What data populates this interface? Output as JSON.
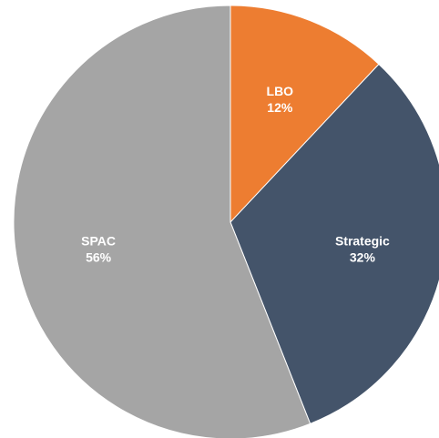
{
  "chart_data": {
    "type": "pie",
    "title": "",
    "slices": [
      {
        "name": "LBO",
        "value": 12,
        "label": "12%",
        "color": "#ED7D31"
      },
      {
        "name": "Strategic",
        "value": 32,
        "label": "32%",
        "color": "#44546A"
      },
      {
        "name": "SPAC",
        "value": 56,
        "label": "56%",
        "color": "#A5A5A5"
      }
    ],
    "start_angle_deg": 0,
    "direction": "clockwise",
    "legend": "none",
    "labels_inside": true
  }
}
